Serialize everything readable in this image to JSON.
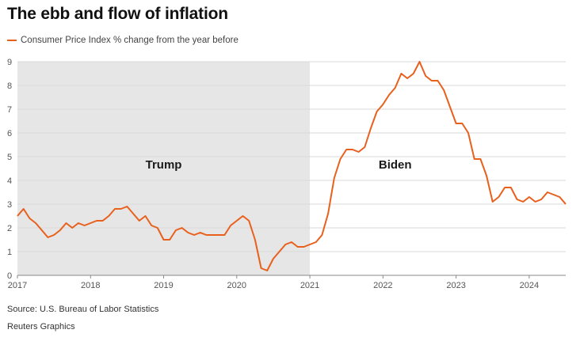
{
  "header": {
    "title": "The ebb and flow of inflation"
  },
  "legend": {
    "label": "Consumer Price Index % change from the year before"
  },
  "footer": {
    "source": "Source: U.S. Bureau of Labor Statistics",
    "credit": "Reuters Graphics"
  },
  "colors": {
    "line": "#e8601c",
    "shade": "#e6e6e6",
    "grid": "#d9d9d9"
  },
  "chart_data": {
    "type": "line",
    "title": "The ebb and flow of inflation",
    "series": [
      {
        "name": "Consumer Price Index % change from the year before",
        "x_start": "2017-01",
        "x_step": "month",
        "values": [
          2.5,
          2.8,
          2.4,
          2.2,
          1.9,
          1.6,
          1.7,
          1.9,
          2.2,
          2.0,
          2.2,
          2.1,
          2.2,
          2.3,
          2.3,
          2.5,
          2.8,
          2.8,
          2.9,
          2.6,
          2.3,
          2.5,
          2.1,
          2.0,
          1.5,
          1.5,
          1.9,
          2.0,
          1.8,
          1.7,
          1.8,
          1.7,
          1.7,
          1.7,
          1.7,
          2.1,
          2.3,
          2.5,
          2.3,
          1.5,
          0.3,
          0.2,
          0.7,
          1.0,
          1.3,
          1.4,
          1.2,
          1.2,
          1.3,
          1.4,
          1.7,
          2.6,
          4.1,
          4.9,
          5.3,
          5.3,
          5.2,
          5.4,
          6.2,
          6.9,
          7.2,
          7.6,
          7.9,
          8.5,
          8.3,
          8.5,
          9.0,
          8.4,
          8.2,
          8.2,
          7.8,
          7.1,
          6.4,
          6.4,
          6.0,
          4.9,
          4.9,
          4.2,
          3.1,
          3.3,
          3.7,
          3.7,
          3.2,
          3.1,
          3.3,
          3.1,
          3.2,
          3.5,
          3.4,
          3.3,
          3.0
        ]
      }
    ],
    "x_ticks": [
      "2017",
      "2018",
      "2019",
      "2020",
      "2021",
      "2022",
      "2023",
      "2024"
    ],
    "y_ticks": [
      0,
      1,
      2,
      3,
      4,
      5,
      6,
      7,
      8,
      9
    ],
    "ylim": [
      0,
      9
    ],
    "xlim": [
      "2017-01",
      "2024-07"
    ],
    "grid": true,
    "shaded_periods": [
      {
        "label": "Trump",
        "start": "2017-01",
        "end": "2021-01"
      }
    ],
    "annotations": [
      {
        "text": "Trump",
        "x": "2019-01",
        "y": 4.5
      },
      {
        "text": "Biden",
        "x": "2022-03",
        "y": 4.5
      }
    ],
    "xlabel": "",
    "ylabel": ""
  }
}
